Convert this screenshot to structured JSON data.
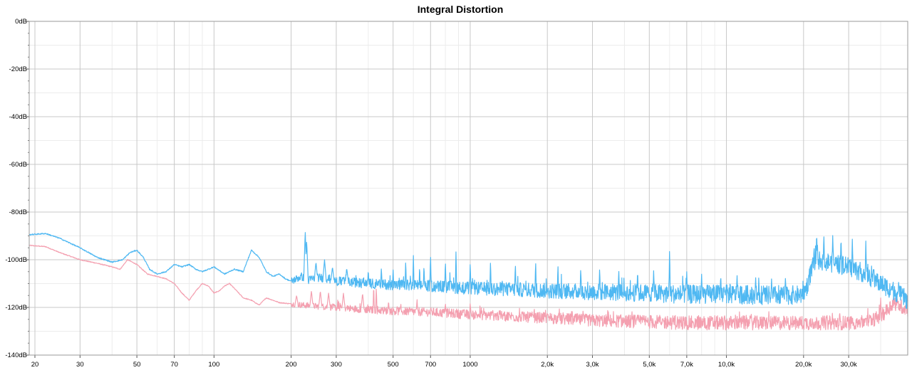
{
  "chart_data": {
    "type": "line",
    "title": "Integral Distortion",
    "xlabel": "",
    "ylabel": "",
    "xscale": "log",
    "xlim": [
      19,
      51000
    ],
    "ylim": [
      -140,
      0
    ],
    "grid": true,
    "x_ticks": [
      {
        "value": 20,
        "label": "20"
      },
      {
        "value": 30,
        "label": "30"
      },
      {
        "value": 50,
        "label": "50"
      },
      {
        "value": 70,
        "label": "70"
      },
      {
        "value": 100,
        "label": "100"
      },
      {
        "value": 200,
        "label": "200"
      },
      {
        "value": 300,
        "label": "300"
      },
      {
        "value": 500,
        "label": "500"
      },
      {
        "value": 700,
        "label": "700"
      },
      {
        "value": 1000,
        "label": "1000"
      },
      {
        "value": 2000,
        "label": "2,0k"
      },
      {
        "value": 3000,
        "label": "3,0k"
      },
      {
        "value": 5000,
        "label": "5,0k"
      },
      {
        "value": 7000,
        "label": "7,0k"
      },
      {
        "value": 10000,
        "label": "10,0k"
      },
      {
        "value": 20000,
        "label": "20,0k"
      },
      {
        "value": 30000,
        "label": "30,0k"
      }
    ],
    "y_ticks": [
      {
        "value": 0,
        "label": "0dB"
      },
      {
        "value": -20,
        "label": "-20dB"
      },
      {
        "value": -40,
        "label": "-40dB"
      },
      {
        "value": -60,
        "label": "-60dB"
      },
      {
        "value": -80,
        "label": "-80dB"
      },
      {
        "value": -100,
        "label": "-100dB"
      },
      {
        "value": -120,
        "label": "-120dB"
      },
      {
        "value": -140,
        "label": "-140dB"
      }
    ],
    "series": [
      {
        "name": "blue",
        "color": "#4fb8f2",
        "noise": 1.6,
        "x": [
          19,
          22,
          25,
          30,
          35,
          40,
          44,
          47,
          50,
          53,
          56,
          60,
          65,
          70,
          75,
          80,
          85,
          90,
          95,
          100,
          110,
          120,
          130,
          140,
          150,
          160,
          170,
          180,
          190,
          200,
          210,
          220,
          230,
          240,
          260,
          280,
          300,
          350,
          400,
          500,
          700,
          1000,
          1500,
          2000,
          3000,
          5000,
          7000,
          10000,
          15000,
          19500,
          20500,
          21500,
          22500,
          25000,
          30000,
          35000,
          40000,
          45000,
          51000
        ],
        "y": [
          -89.5,
          -89,
          -91,
          -95,
          -99,
          -101,
          -100,
          -97,
          -96,
          -99,
          -104,
          -106,
          -105,
          -102,
          -103,
          -102,
          -104,
          -105,
          -104,
          -103,
          -106,
          -104,
          -105,
          -96,
          -99,
          -105,
          -107,
          -106,
          -108,
          -109,
          -108,
          -107,
          -109,
          -108,
          -107.5,
          -108,
          -109,
          -109.5,
          -110,
          -110.5,
          -111,
          -112,
          -112.5,
          -113,
          -113.5,
          -114,
          -114.5,
          -114.5,
          -115,
          -114.8,
          -112,
          -104,
          -100,
          -101,
          -103,
          -106,
          -110,
          -113,
          -117
        ]
      },
      {
        "name": "pink",
        "color": "#f4a0b0",
        "noise": 1.2,
        "x": [
          19,
          22,
          25,
          30,
          35,
          40,
          43,
          46,
          50,
          55,
          60,
          65,
          70,
          75,
          80,
          85,
          90,
          95,
          100,
          105,
          110,
          115,
          120,
          130,
          140,
          150,
          160,
          170,
          180,
          200,
          220,
          250,
          300,
          400,
          500,
          700,
          1000,
          2000,
          3000,
          5000,
          7000,
          10000,
          15000,
          20000,
          25000,
          30000,
          35000,
          40000,
          45000,
          51000
        ],
        "y": [
          -94,
          -94.5,
          -97,
          -100,
          -101.5,
          -103,
          -104,
          -100,
          -102,
          -106,
          -107,
          -108,
          -110,
          -114,
          -117,
          -113,
          -110,
          -111,
          -114,
          -113,
          -111,
          -110,
          -112,
          -116,
          -117,
          -119,
          -116,
          -117,
          -118,
          -118.5,
          -119,
          -119.5,
          -120,
          -121,
          -121.5,
          -122,
          -123,
          -124.5,
          -125.5,
          -126,
          -126.5,
          -126.5,
          -126.5,
          -126.5,
          -126.5,
          -126.5,
          -126,
          -124,
          -118,
          -121
        ]
      }
    ],
    "peaks": [
      {
        "series": "blue",
        "x": 227,
        "y": -88
      },
      {
        "series": "blue",
        "x": 230,
        "y": -92
      },
      {
        "series": "blue",
        "x": 250,
        "y": -101
      },
      {
        "series": "blue",
        "x": 270,
        "y": -100
      },
      {
        "series": "blue",
        "x": 290,
        "y": -103
      },
      {
        "series": "blue",
        "x": 330,
        "y": -104
      },
      {
        "series": "blue",
        "x": 400,
        "y": -104
      },
      {
        "series": "blue",
        "x": 450,
        "y": -103
      },
      {
        "series": "blue",
        "x": 500,
        "y": -104
      },
      {
        "series": "blue",
        "x": 560,
        "y": -100
      },
      {
        "series": "blue",
        "x": 600,
        "y": -98
      },
      {
        "series": "blue",
        "x": 660,
        "y": -102
      },
      {
        "series": "blue",
        "x": 700,
        "y": -97
      },
      {
        "series": "blue",
        "x": 800,
        "y": -100
      },
      {
        "series": "blue",
        "x": 880,
        "y": -96
      },
      {
        "series": "blue",
        "x": 1000,
        "y": -101
      },
      {
        "series": "blue",
        "x": 1200,
        "y": -100
      },
      {
        "series": "blue",
        "x": 1500,
        "y": -101
      },
      {
        "series": "blue",
        "x": 1800,
        "y": -100
      },
      {
        "series": "blue",
        "x": 2200,
        "y": -102
      },
      {
        "series": "blue",
        "x": 2700,
        "y": -103
      },
      {
        "series": "blue",
        "x": 3200,
        "y": -103
      },
      {
        "series": "blue",
        "x": 3800,
        "y": -104
      },
      {
        "series": "blue",
        "x": 4500,
        "y": -104
      },
      {
        "series": "blue",
        "x": 5200,
        "y": -104
      },
      {
        "series": "blue",
        "x": 6000,
        "y": -94
      },
      {
        "series": "blue",
        "x": 7000,
        "y": -105
      },
      {
        "series": "blue",
        "x": 8000,
        "y": -106
      },
      {
        "series": "blue",
        "x": 9500,
        "y": -106
      },
      {
        "series": "blue",
        "x": 11000,
        "y": -106
      },
      {
        "series": "blue",
        "x": 13000,
        "y": -107
      },
      {
        "series": "blue",
        "x": 15000,
        "y": -108
      },
      {
        "series": "blue",
        "x": 17000,
        "y": -107
      },
      {
        "series": "blue",
        "x": 22500,
        "y": -88
      },
      {
        "series": "blue",
        "x": 24000,
        "y": -89
      },
      {
        "series": "blue",
        "x": 26000,
        "y": -89
      },
      {
        "series": "blue",
        "x": 28000,
        "y": -90
      },
      {
        "series": "blue",
        "x": 31000,
        "y": -91
      },
      {
        "series": "blue",
        "x": 35000,
        "y": -92
      },
      {
        "series": "pink",
        "x": 210,
        "y": -115
      },
      {
        "series": "pink",
        "x": 240,
        "y": -113
      },
      {
        "series": "pink",
        "x": 260,
        "y": -113
      },
      {
        "series": "pink",
        "x": 280,
        "y": -114
      },
      {
        "series": "pink",
        "x": 320,
        "y": -114
      },
      {
        "series": "pink",
        "x": 380,
        "y": -114
      },
      {
        "series": "pink",
        "x": 420,
        "y": -110
      },
      {
        "series": "pink",
        "x": 430,
        "y": -111
      },
      {
        "series": "pink",
        "x": 480,
        "y": -117
      },
      {
        "series": "pink",
        "x": 620,
        "y": -116
      },
      {
        "series": "pink",
        "x": 800,
        "y": -118
      },
      {
        "series": "pink",
        "x": 1000,
        "y": -118
      },
      {
        "series": "pink",
        "x": 1300,
        "y": -121
      },
      {
        "series": "pink",
        "x": 2000,
        "y": -122
      },
      {
        "series": "pink",
        "x": 40000,
        "y": -116
      }
    ]
  }
}
